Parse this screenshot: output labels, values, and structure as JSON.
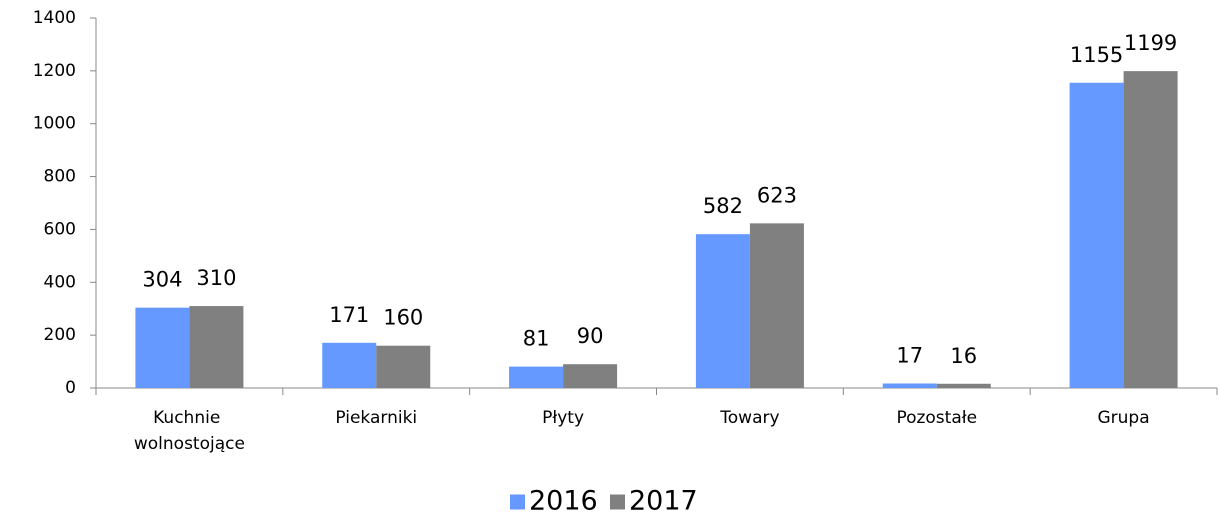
{
  "chart_data": {
    "type": "bar",
    "categories": [
      "Kuchnie wolnostojące",
      "Piekarniki",
      "Płyty",
      "Towary",
      "Pozostałe",
      "Grupa"
    ],
    "series": [
      {
        "name": "2016",
        "color": "#6699ff",
        "values": [
          304,
          171,
          81,
          582,
          17,
          1155
        ]
      },
      {
        "name": "2017",
        "color": "#808080",
        "values": [
          310,
          160,
          90,
          623,
          16,
          1199
        ]
      }
    ],
    "ylim": [
      0,
      1400
    ],
    "yticks": [
      0,
      200,
      400,
      600,
      800,
      1000,
      1200,
      1400
    ],
    "grid": false,
    "legend": "bottom"
  }
}
